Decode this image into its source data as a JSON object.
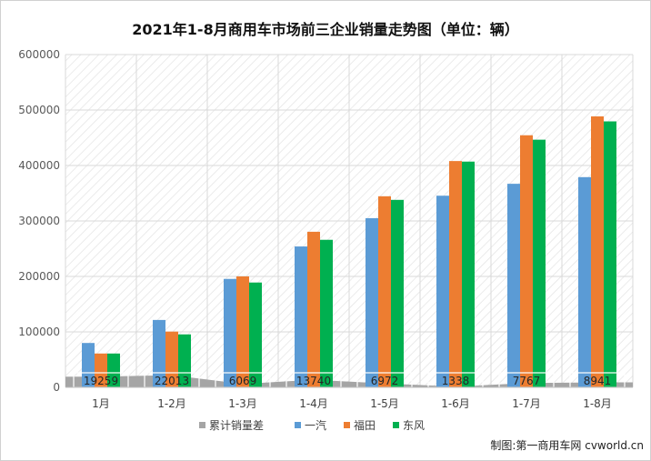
{
  "chart_data": {
    "type": "bar",
    "title": "2021年1-8月商用车市场前三企业销量走势图（单位：辆）",
    "categories": [
      "1月",
      "1-2月",
      "1-3月",
      "1-4月",
      "1-5月",
      "1-6月",
      "1-7月",
      "1-8月"
    ],
    "ylim": [
      0,
      600000
    ],
    "yticks": [
      0,
      100000,
      200000,
      300000,
      400000,
      500000,
      600000
    ],
    "ytick_labels": [
      "0",
      "100000",
      "200000",
      "300000",
      "400000",
      "500000",
      "600000"
    ],
    "grid": true,
    "legend_position": "bottom",
    "series": [
      {
        "name": "一汽",
        "color": "#5b9bd5",
        "values": [
          80000,
          121500,
          195500,
          254000,
          305000,
          345500,
          367000,
          379000
        ]
      },
      {
        "name": "福田",
        "color": "#ed7d31",
        "values": [
          61000,
          100500,
          200000,
          280500,
          344500,
          408000,
          454500,
          488500
        ]
      },
      {
        "name": "东风",
        "color": "#00b050",
        "values": [
          61000,
          95500,
          189000,
          266000,
          338000,
          407000,
          446500,
          479500
        ]
      }
    ],
    "area_series": {
      "name": "累计销量差",
      "color": "#a5a5a5",
      "values": [
        19259,
        22013,
        6069,
        13740,
        6972,
        1338,
        7767,
        8941
      ],
      "data_labels": [
        "19259",
        "22013",
        "6069",
        "13740",
        "6972",
        "1338",
        "7767",
        "8941"
      ]
    },
    "source": "制图:第一商用车网 cvworld.cn"
  }
}
